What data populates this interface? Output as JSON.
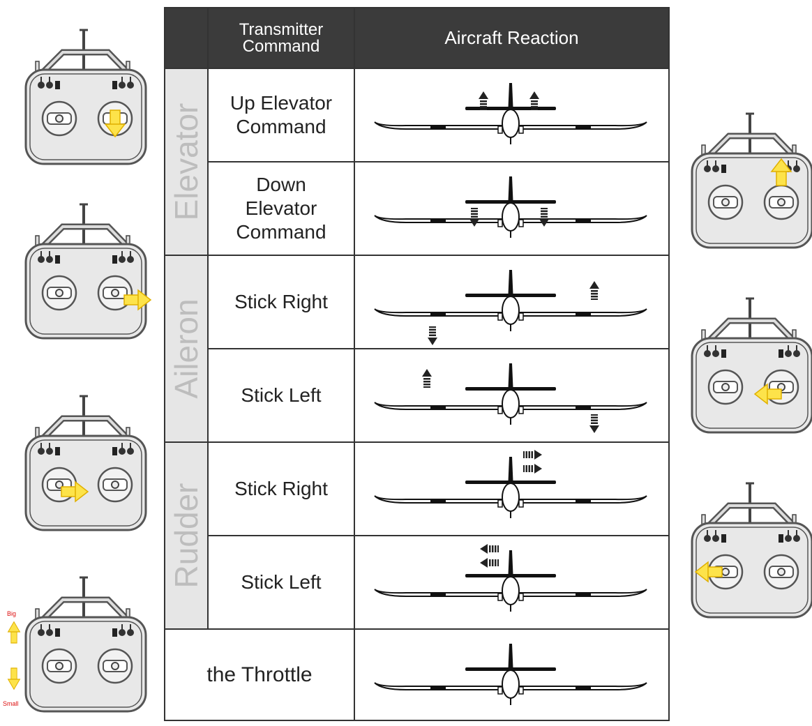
{
  "header": {
    "command": "Transmitter Command",
    "reaction": "Aircraft Reaction"
  },
  "groups": [
    {
      "label": "Elevator",
      "rows": [
        {
          "command": "Up Elevator Command"
        },
        {
          "command": "Down Elevator Command"
        }
      ]
    },
    {
      "label": "Aileron",
      "rows": [
        {
          "command": "Stick Right"
        },
        {
          "command": "Stick Left"
        }
      ]
    },
    {
      "label": "Rudder",
      "rows": [
        {
          "command": "Stick Right"
        },
        {
          "command": "Stick Left"
        }
      ]
    }
  ],
  "throttle": "the Throttle",
  "throttle_labels": {
    "big": "Big",
    "small": "Small"
  }
}
